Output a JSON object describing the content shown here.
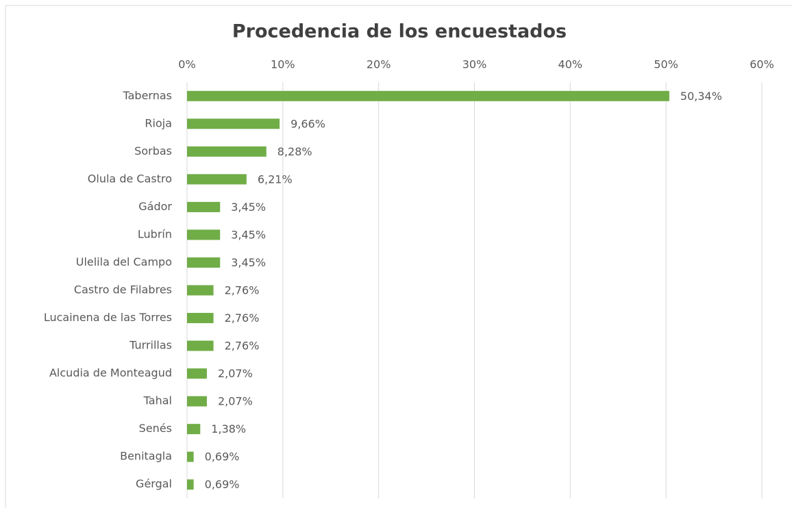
{
  "chart_data": {
    "type": "bar",
    "orientation": "horizontal",
    "title": "Procedencia de los encuestados",
    "categories": [
      "Tabernas",
      "Rioja",
      "Sorbas",
      "Olula de Castro",
      "Gádor",
      "Lubrín",
      "Ulelila del Campo",
      "Castro de Filabres",
      "Lucainena de las Torres",
      "Turrillas",
      "Alcudia de Monteagud",
      "Tahal",
      "Senés",
      "Benitagla",
      "Gérgal"
    ],
    "values": [
      50.34,
      9.66,
      8.28,
      6.21,
      3.45,
      3.45,
      3.45,
      2.76,
      2.76,
      2.76,
      2.07,
      2.07,
      1.38,
      0.69,
      0.69
    ],
    "value_labels": [
      "50,34%",
      "9,66%",
      "8,28%",
      "6,21%",
      "3,45%",
      "3,45%",
      "3,45%",
      "2,76%",
      "2,76%",
      "2,76%",
      "2,07%",
      "2,07%",
      "1,38%",
      "0,69%",
      "0,69%"
    ],
    "color": "#70ad47",
    "xlim": [
      0,
      60
    ],
    "xticks": [
      {
        "value": 0,
        "label": "0%"
      },
      {
        "value": 10,
        "label": "10%"
      },
      {
        "value": 20,
        "label": "20%"
      },
      {
        "value": 30,
        "label": "30%"
      },
      {
        "value": 40,
        "label": "40%"
      },
      {
        "value": 50,
        "label": "50%"
      },
      {
        "value": 60,
        "label": "60%"
      }
    ],
    "grid": true
  }
}
